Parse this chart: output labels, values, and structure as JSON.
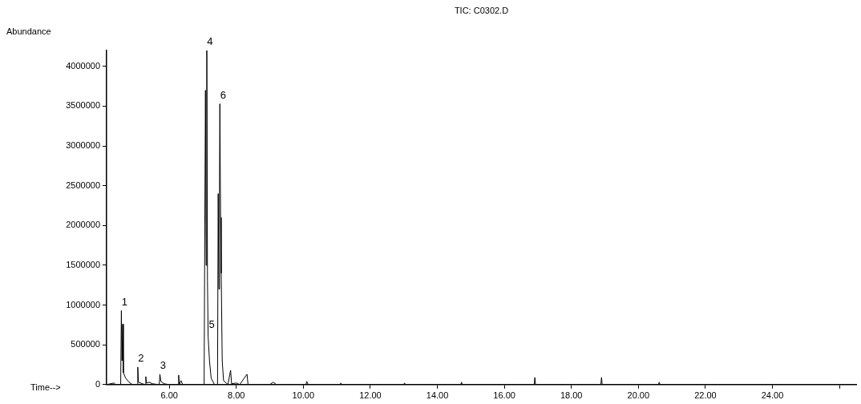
{
  "chart_data": {
    "type": "line",
    "title": "TIC: C0302.D",
    "xlabel": "Time-->",
    "ylabel": "Abundance",
    "x": [
      4.13,
      4.35,
      4.4,
      4.55,
      4.57,
      4.59,
      4.61,
      4.63,
      4.7,
      4.8,
      4.9,
      5.04,
      5.06,
      5.08,
      5.2,
      5.29,
      5.3,
      5.32,
      5.4,
      5.5,
      5.7,
      5.72,
      5.75,
      5.85,
      6.0,
      6.26,
      6.28,
      6.3,
      6.35,
      6.4,
      7.04,
      7.06,
      7.08,
      7.1,
      7.12,
      7.14,
      7.16,
      7.2,
      7.25,
      7.35,
      7.44,
      7.46,
      7.48,
      7.5,
      7.51,
      7.53,
      7.55,
      7.58,
      7.62,
      7.75,
      7.83,
      7.86,
      8.0,
      8.1,
      8.32,
      8.35,
      9.0,
      9.1,
      9.2,
      10.08,
      10.1,
      10.15,
      11.1,
      11.12,
      11.15,
      13.0,
      13.02,
      13.05,
      14.7,
      14.72,
      14.75,
      16.89,
      16.91,
      16.93,
      18.88,
      18.9,
      18.92,
      20.6,
      20.62,
      20.65,
      26.5
    ],
    "series": [
      {
        "color": "#000000",
        "values": [
          0,
          20000,
          0,
          0,
          930000,
          300000,
          760000,
          150000,
          80000,
          30000,
          0,
          0,
          220000,
          30000,
          10000,
          0,
          100000,
          20000,
          30000,
          10000,
          0,
          130000,
          40000,
          10000,
          0,
          0,
          120000,
          0,
          50000,
          0,
          0,
          2000000,
          3700000,
          1500000,
          4200000,
          1300000,
          600000,
          300000,
          80000,
          0,
          0,
          2400000,
          1200000,
          2600000,
          3530000,
          2100000,
          1400000,
          300000,
          50000,
          0,
          180000,
          10000,
          20000,
          0,
          130000,
          0,
          0,
          30000,
          0,
          0,
          40000,
          0,
          0,
          20000,
          0,
          0,
          20000,
          0,
          0,
          30000,
          0,
          0,
          90000,
          0,
          0,
          90000,
          0,
          0,
          30000,
          0,
          0
        ]
      }
    ],
    "xlim": [
      4.13,
      26.5
    ],
    "xticks": [
      {
        "value": 6,
        "label": "6.00"
      },
      {
        "value": 8,
        "label": "8.00"
      },
      {
        "value": 10,
        "label": "10.00"
      },
      {
        "value": 12,
        "label": "12.00"
      },
      {
        "value": 14,
        "label": "14.00"
      },
      {
        "value": 16,
        "label": "16.00"
      },
      {
        "value": 18,
        "label": "18.00"
      },
      {
        "value": 20,
        "label": "20.00"
      },
      {
        "value": 22,
        "label": "22.00"
      },
      {
        "value": 24,
        "label": "24.00"
      },
      {
        "value": 26,
        "label": null
      }
    ],
    "ylim": [
      0,
      4200000
    ],
    "yticks": [
      0,
      500000,
      1000000,
      1500000,
      2000000,
      2500000,
      3000000,
      3500000,
      4000000
    ],
    "annotations": [
      {
        "text": "1",
        "x": 4.57,
        "y": 930000
      },
      {
        "text": "2",
        "x": 5.06,
        "y": 220000
      },
      {
        "text": "3",
        "x": 5.72,
        "y": 130000
      },
      {
        "text": "4",
        "x": 7.12,
        "y": 4200000
      },
      "5",
      {
        "text": "6",
        "x": 7.51,
        "y": 3530000
      }
    ],
    "grid": false,
    "legend": false,
    "marker": "none",
    "line_style": "solid"
  }
}
